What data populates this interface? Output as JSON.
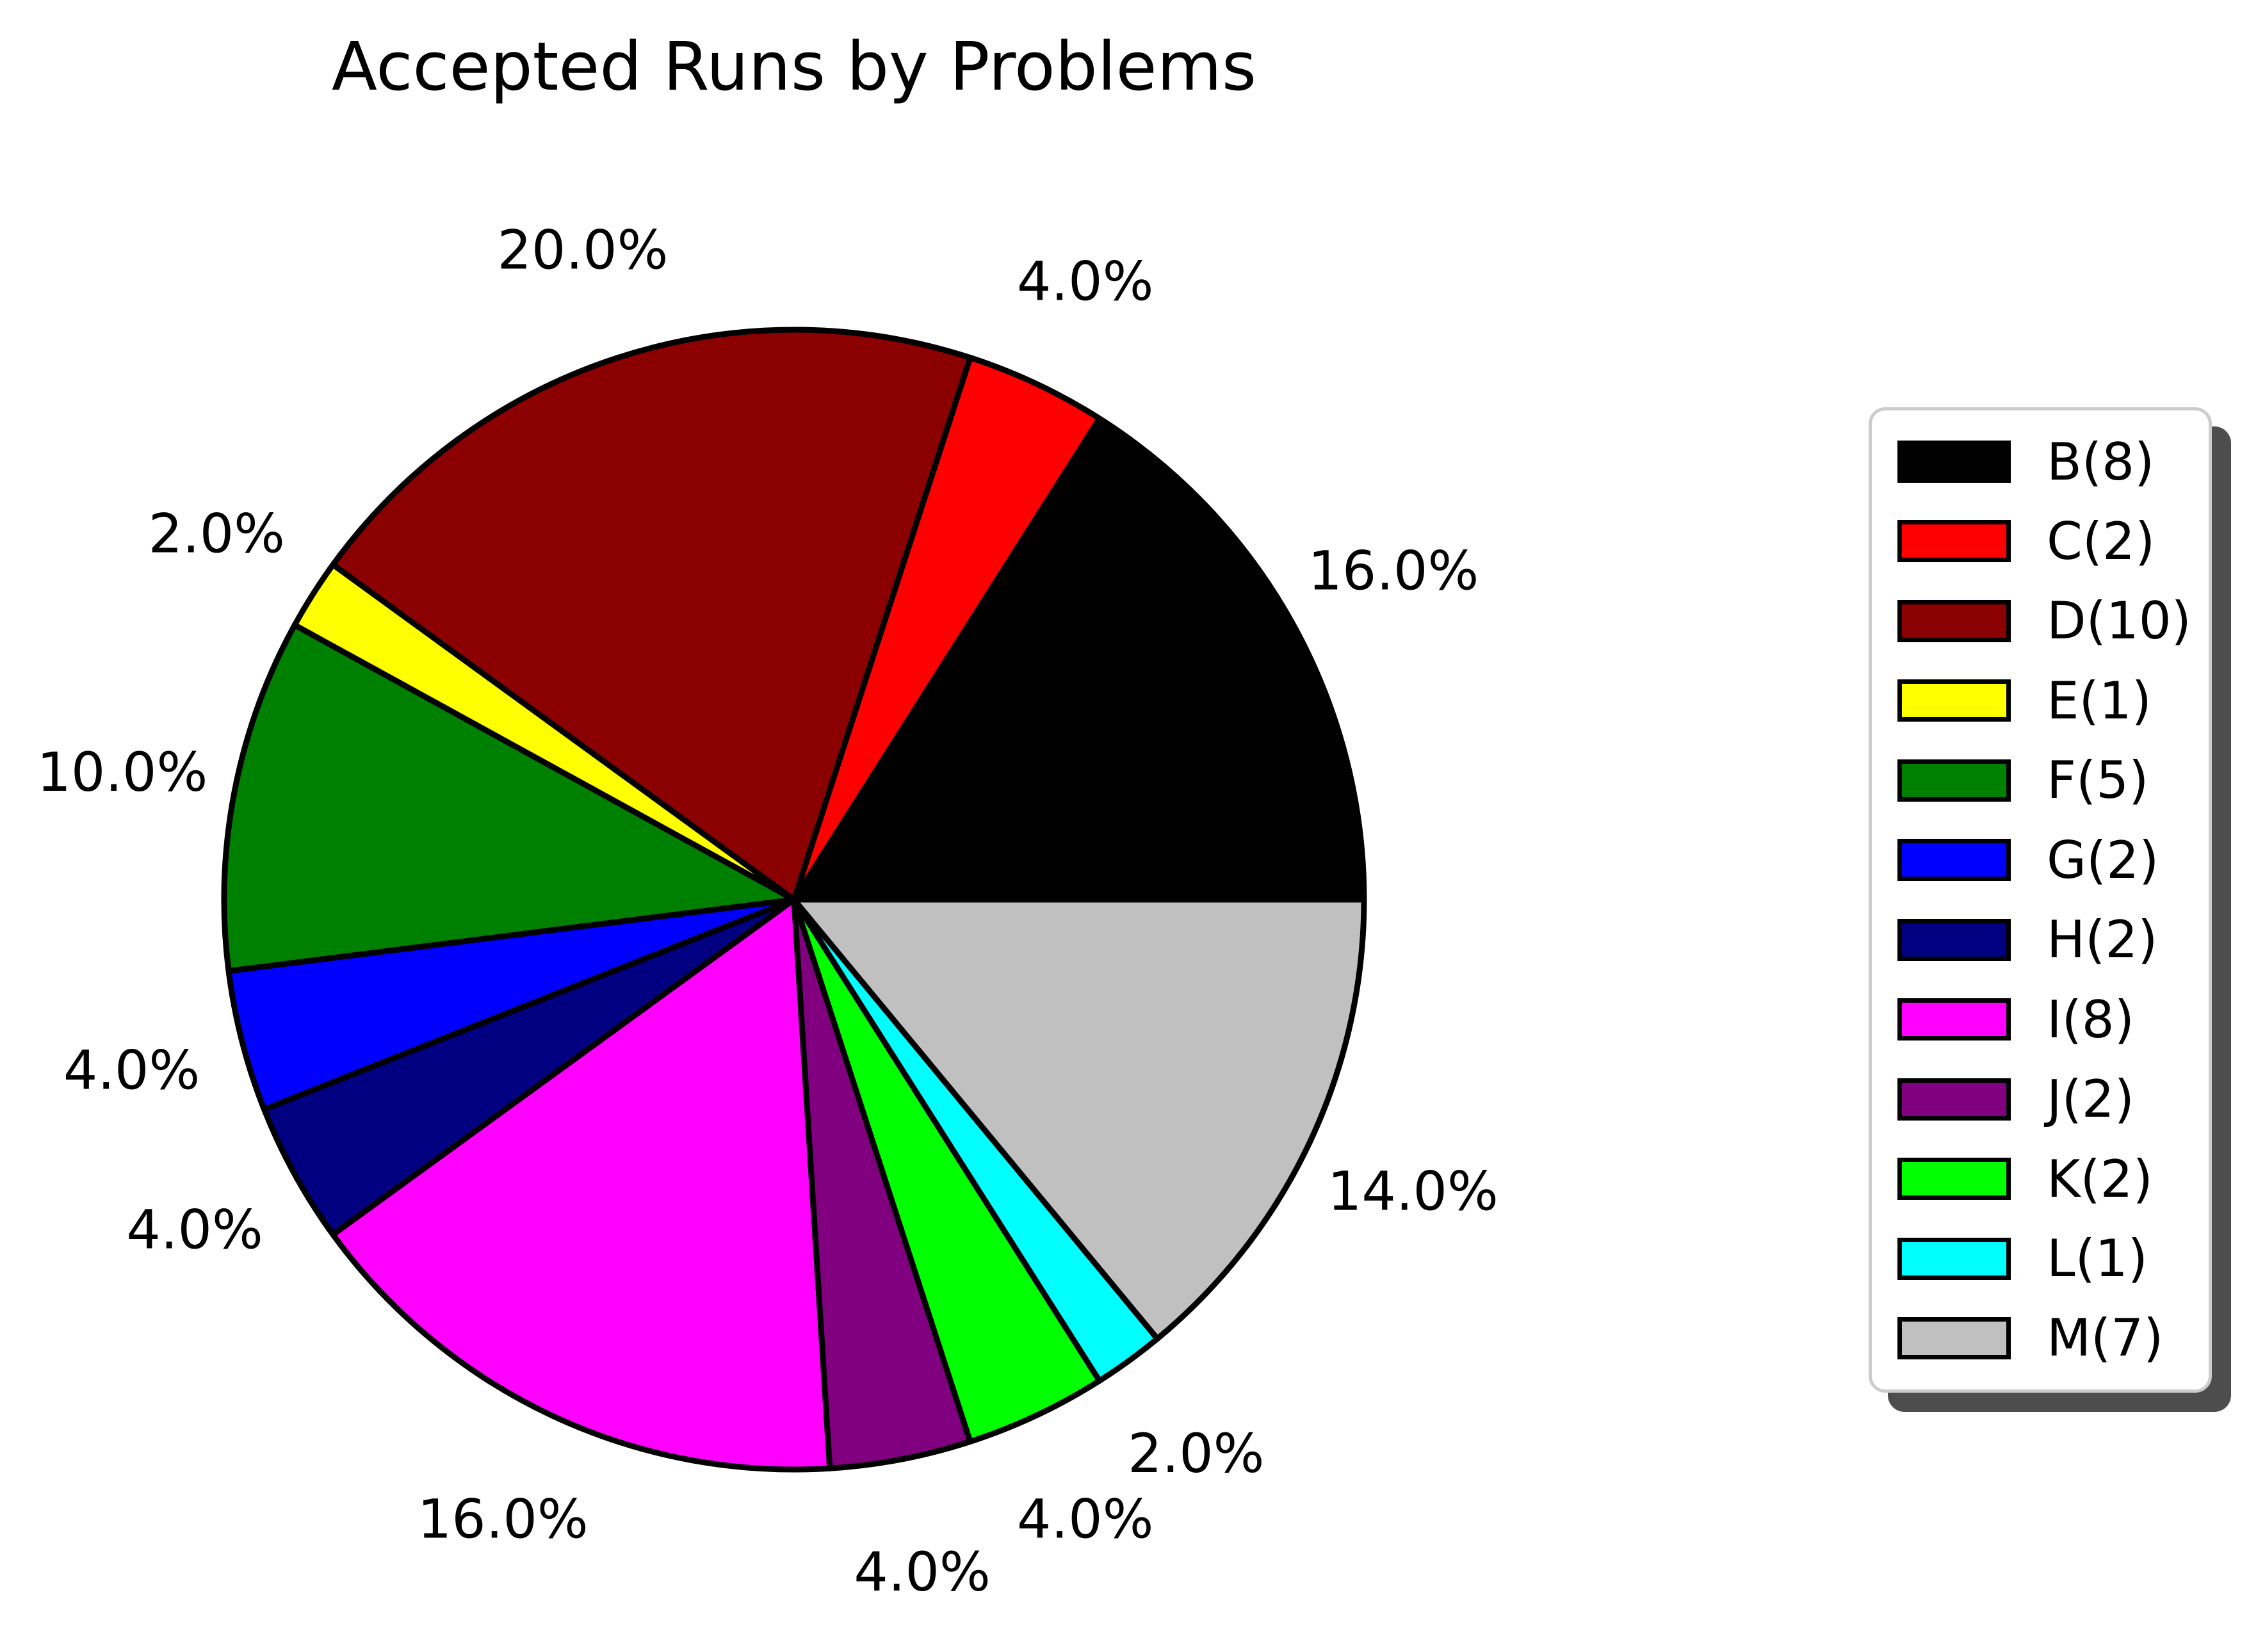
{
  "chart_data": {
    "type": "pie",
    "title": "Accepted Runs by Problems",
    "total_runs": 50,
    "start_angle_deg": 0,
    "direction": "counterclockwise",
    "label_distance_ratio": 1.2,
    "legend_position": "right",
    "wedge_edge_color": "#000000",
    "background_color": "#ffffff",
    "slices": [
      {
        "problem": "B",
        "legend_label": "B(8)",
        "count": 8,
        "pct": 16.0,
        "pct_label": "16.0%",
        "color": "#000000"
      },
      {
        "problem": "C",
        "legend_label": "C(2)",
        "count": 2,
        "pct": 4.0,
        "pct_label": "4.0%",
        "color": "#ff0000"
      },
      {
        "problem": "D",
        "legend_label": "D(10)",
        "count": 10,
        "pct": 20.0,
        "pct_label": "20.0%",
        "color": "#8b0000"
      },
      {
        "problem": "E",
        "legend_label": "E(1)",
        "count": 1,
        "pct": 2.0,
        "pct_label": "2.0%",
        "color": "#ffff00"
      },
      {
        "problem": "F",
        "legend_label": "F(5)",
        "count": 5,
        "pct": 10.0,
        "pct_label": "10.0%",
        "color": "#008000"
      },
      {
        "problem": "G",
        "legend_label": "G(2)",
        "count": 2,
        "pct": 4.0,
        "pct_label": "4.0%",
        "color": "#0000ff"
      },
      {
        "problem": "H",
        "legend_label": "H(2)",
        "count": 2,
        "pct": 4.0,
        "pct_label": "4.0%",
        "color": "#000080"
      },
      {
        "problem": "I",
        "legend_label": "I(8)",
        "count": 8,
        "pct": 16.0,
        "pct_label": "16.0%",
        "color": "#ff00ff"
      },
      {
        "problem": "J",
        "legend_label": "J(2)",
        "count": 2,
        "pct": 4.0,
        "pct_label": "4.0%",
        "color": "#800080"
      },
      {
        "problem": "K",
        "legend_label": "K(2)",
        "count": 2,
        "pct": 4.0,
        "pct_label": "4.0%",
        "color": "#00ff00"
      },
      {
        "problem": "L",
        "legend_label": "L(1)",
        "count": 1,
        "pct": 2.0,
        "pct_label": "2.0%",
        "color": "#00ffff"
      },
      {
        "problem": "M",
        "legend_label": "M(7)",
        "count": 7,
        "pct": 14.0,
        "pct_label": "14.0%",
        "color": "#c0c0c0"
      }
    ]
  }
}
